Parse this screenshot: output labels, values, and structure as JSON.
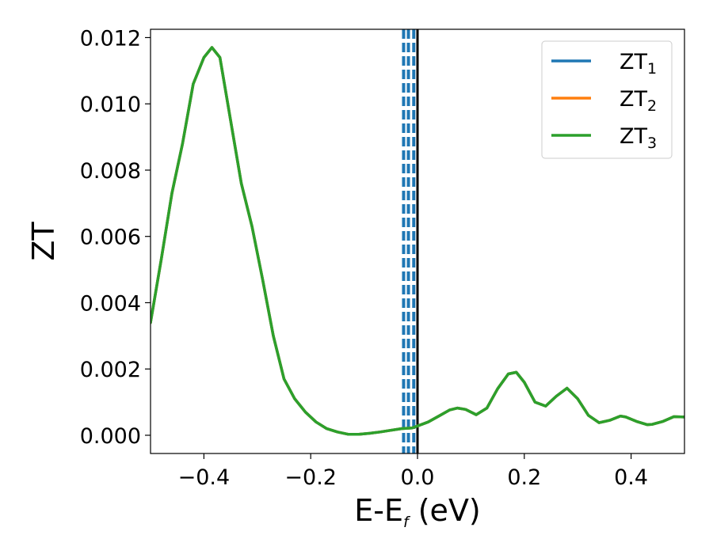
{
  "chart_data": {
    "type": "line",
    "xlabel": {
      "main": "E-E",
      "sub": "f",
      "rest": " (eV)"
    },
    "ylabel": "ZT",
    "xlim": [
      -0.5,
      0.5
    ],
    "ylim": [
      -0.00055,
      0.01225
    ],
    "xticks": [
      -0.4,
      -0.2,
      0.0,
      0.2,
      0.4
    ],
    "xtick_labels": [
      "−0.4",
      "−0.2",
      "0.0",
      "0.2",
      "0.4"
    ],
    "yticks": [
      0.0,
      0.002,
      0.004,
      0.006,
      0.008,
      0.01,
      0.012
    ],
    "ytick_labels": [
      "0.000",
      "0.002",
      "0.004",
      "0.006",
      "0.008",
      "0.010",
      "0.012"
    ],
    "grid": false,
    "legend_position": "top-right",
    "vlines": [
      {
        "x": 0.0,
        "style": "solid",
        "color": "#000000"
      },
      {
        "x": -0.026,
        "style": "dashed",
        "color": "#1f77b4"
      },
      {
        "x": -0.017,
        "style": "dashed",
        "color": "#1f77b4"
      },
      {
        "x": -0.007,
        "style": "dashed",
        "color": "#1f77b4"
      }
    ],
    "x": [
      -0.5,
      -0.48,
      -0.46,
      -0.44,
      -0.42,
      -0.4,
      -0.385,
      -0.37,
      -0.35,
      -0.33,
      -0.31,
      -0.29,
      -0.27,
      -0.25,
      -0.23,
      -0.21,
      -0.19,
      -0.17,
      -0.15,
      -0.13,
      -0.11,
      -0.09,
      -0.07,
      -0.05,
      -0.03,
      -0.01,
      0.0,
      0.02,
      0.04,
      0.06,
      0.075,
      0.09,
      0.11,
      0.13,
      0.15,
      0.17,
      0.185,
      0.2,
      0.22,
      0.24,
      0.26,
      0.28,
      0.3,
      0.32,
      0.34,
      0.36,
      0.38,
      0.39,
      0.41,
      0.43,
      0.44,
      0.46,
      0.48,
      0.5
    ],
    "series": [
      {
        "name": "ZT₁",
        "label_main": "ZT",
        "label_sub": "1",
        "color": "#1f77b4",
        "values": [
          0.0034,
          0.0053,
          0.0073,
          0.0088,
          0.0106,
          0.0114,
          0.0117,
          0.0114,
          0.0095,
          0.0076,
          0.0063,
          0.0047,
          0.003,
          0.0017,
          0.0011,
          0.0007,
          0.0004,
          0.0002,
          0.0001,
          3e-05,
          3e-05,
          6e-05,
          0.0001,
          0.00015,
          0.0002,
          0.00022,
          0.00028,
          0.0004,
          0.00058,
          0.00076,
          0.00082,
          0.00078,
          0.00062,
          0.00082,
          0.0014,
          0.00185,
          0.0019,
          0.0016,
          0.001,
          0.00088,
          0.00118,
          0.00142,
          0.0011,
          0.0006,
          0.00038,
          0.00045,
          0.00058,
          0.00055,
          0.00042,
          0.00032,
          0.00033,
          0.00042,
          0.00056,
          0.00055
        ]
      },
      {
        "name": "ZT₂",
        "label_main": "ZT",
        "label_sub": "2",
        "color": "#ff7f0e",
        "values": [
          0.0034,
          0.0053,
          0.0073,
          0.0088,
          0.0106,
          0.0114,
          0.0117,
          0.0114,
          0.0095,
          0.0076,
          0.0063,
          0.0047,
          0.003,
          0.0017,
          0.0011,
          0.0007,
          0.0004,
          0.0002,
          0.0001,
          3e-05,
          3e-05,
          6e-05,
          0.0001,
          0.00015,
          0.0002,
          0.00022,
          0.00028,
          0.0004,
          0.00058,
          0.00076,
          0.00082,
          0.00078,
          0.00062,
          0.00082,
          0.0014,
          0.00185,
          0.0019,
          0.0016,
          0.001,
          0.00088,
          0.00118,
          0.00142,
          0.0011,
          0.0006,
          0.00038,
          0.00045,
          0.00058,
          0.00055,
          0.00042,
          0.00032,
          0.00033,
          0.00042,
          0.00056,
          0.00055
        ]
      },
      {
        "name": "ZT₃",
        "label_main": "ZT",
        "label_sub": "3",
        "color": "#2ca02c",
        "values": [
          0.0034,
          0.0053,
          0.0073,
          0.0088,
          0.0106,
          0.0114,
          0.0117,
          0.0114,
          0.0095,
          0.0076,
          0.0063,
          0.0047,
          0.003,
          0.0017,
          0.0011,
          0.0007,
          0.0004,
          0.0002,
          0.0001,
          3e-05,
          3e-05,
          6e-05,
          0.0001,
          0.00015,
          0.0002,
          0.00022,
          0.00028,
          0.0004,
          0.00058,
          0.00076,
          0.00082,
          0.00078,
          0.00062,
          0.00082,
          0.0014,
          0.00185,
          0.0019,
          0.0016,
          0.001,
          0.00088,
          0.00118,
          0.00142,
          0.0011,
          0.0006,
          0.00038,
          0.00045,
          0.00058,
          0.00055,
          0.00042,
          0.00032,
          0.00033,
          0.00042,
          0.00056,
          0.00055
        ]
      }
    ]
  }
}
